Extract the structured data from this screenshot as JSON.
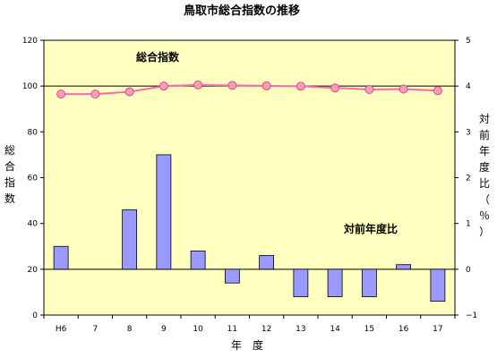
{
  "chart_data": {
    "type": "bar+line",
    "title": "鳥取市総合指数の推移",
    "xlabel": "年　度",
    "ylabel_left": "総合指数",
    "ylabel_right": "対前年度比（％）",
    "categories": [
      "H6",
      "7",
      "8",
      "9",
      "10",
      "11",
      "12",
      "13",
      "14",
      "15",
      "16",
      "17"
    ],
    "line_series": {
      "name": "総合指数",
      "axis": "left",
      "color": "#ff6aa8",
      "marker_color": "#ff9cbc",
      "values": [
        96.5,
        96.5,
        97.5,
        100.0,
        100.5,
        100.3,
        100.1,
        99.9,
        99.2,
        98.5,
        98.7,
        98.0
      ]
    },
    "bar_series": {
      "name": "対前年度比",
      "axis": "right",
      "color": "#9999ff",
      "values": [
        0.5,
        0.0,
        1.3,
        2.5,
        0.4,
        -0.3,
        0.3,
        -0.6,
        -0.6,
        -0.6,
        0.1,
        -0.7
      ]
    },
    "ylim_left": [
      0,
      120
    ],
    "yticks_left": [
      "0",
      "20",
      "40",
      "60",
      "80",
      "100",
      "120"
    ],
    "ylim_right": [
      -1,
      5
    ],
    "yticks_right": [
      "−1",
      "0",
      "1",
      "2",
      "3",
      "4",
      "5"
    ],
    "reference_lines": [
      {
        "axis": "left",
        "value": 100
      },
      {
        "axis": "right",
        "value": 0
      }
    ],
    "plot_background": "#ffffc0",
    "grid": false
  }
}
